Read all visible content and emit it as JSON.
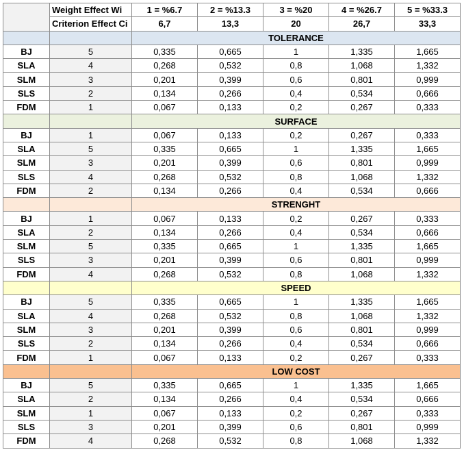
{
  "header": {
    "rows": [
      [
        "Weight Effect Wi",
        "1 = %6.7",
        "2 = %13.3",
        "3 = %20",
        "4 = %26.7",
        "5 = %33.3"
      ],
      [
        "Criterion Effect Ci",
        "6,7",
        "13,3",
        "20",
        "26,7",
        "33,3"
      ]
    ]
  },
  "sections": [
    {
      "title": "TOLERANCE",
      "rows": [
        [
          "BJ",
          "5",
          "0,335",
          "0,665",
          "1",
          "1,335",
          "1,665"
        ],
        [
          "SLA",
          "4",
          "0,268",
          "0,532",
          "0,8",
          "1,068",
          "1,332"
        ],
        [
          "SLM",
          "3",
          "0,201",
          "0,399",
          "0,6",
          "0,801",
          "0,999"
        ],
        [
          "SLS",
          "2",
          "0,134",
          "0,266",
          "0,4",
          "0,534",
          "0,666"
        ],
        [
          "FDM",
          "1",
          "0,067",
          "0,133",
          "0,2",
          "0,267",
          "0,333"
        ]
      ]
    },
    {
      "title": "SURFACE",
      "rows": [
        [
          "BJ",
          "1",
          "0,067",
          "0,133",
          "0,2",
          "0,267",
          "0,333"
        ],
        [
          "SLA",
          "5",
          "0,335",
          "0,665",
          "1",
          "1,335",
          "1,665"
        ],
        [
          "SLM",
          "3",
          "0,201",
          "0,399",
          "0,6",
          "0,801",
          "0,999"
        ],
        [
          "SLS",
          "4",
          "0,268",
          "0,532",
          "0,8",
          "1,068",
          "1,332"
        ],
        [
          "FDM",
          "2",
          "0,134",
          "0,266",
          "0,4",
          "0,534",
          "0,666"
        ]
      ]
    },
    {
      "title": "STRENGHT",
      "rows": [
        [
          "BJ",
          "1",
          "0,067",
          "0,133",
          "0,2",
          "0,267",
          "0,333"
        ],
        [
          "SLA",
          "2",
          "0,134",
          "0,266",
          "0,4",
          "0,534",
          "0,666"
        ],
        [
          "SLM",
          "5",
          "0,335",
          "0,665",
          "1",
          "1,335",
          "1,665"
        ],
        [
          "SLS",
          "3",
          "0,201",
          "0,399",
          "0,6",
          "0,801",
          "0,999"
        ],
        [
          "FDM",
          "4",
          "0,268",
          "0,532",
          "0,8",
          "1,068",
          "1,332"
        ]
      ]
    },
    {
      "title": "SPEED",
      "rows": [
        [
          "BJ",
          "5",
          "0,335",
          "0,665",
          "1",
          "1,335",
          "1,665"
        ],
        [
          "SLA",
          "4",
          "0,268",
          "0,532",
          "0,8",
          "1,068",
          "1,332"
        ],
        [
          "SLM",
          "3",
          "0,201",
          "0,399",
          "0,6",
          "0,801",
          "0,999"
        ],
        [
          "SLS",
          "2",
          "0,134",
          "0,266",
          "0,4",
          "0,534",
          "0,666"
        ],
        [
          "FDM",
          "1",
          "0,067",
          "0,133",
          "0,2",
          "0,267",
          "0,333"
        ]
      ]
    },
    {
      "title": "LOW COST",
      "rows": [
        [
          "BJ",
          "5",
          "0,335",
          "0,665",
          "1",
          "1,335",
          "1,665"
        ],
        [
          "SLA",
          "2",
          "0,134",
          "0,266",
          "0,4",
          "0,534",
          "0,666"
        ],
        [
          "SLM",
          "1",
          "0,067",
          "0,133",
          "0,2",
          "0,267",
          "0,333"
        ],
        [
          "SLS",
          "3",
          "0,201",
          "0,399",
          "0,6",
          "0,801",
          "0,999"
        ],
        [
          "FDM",
          "4",
          "0,268",
          "0,532",
          "0,8",
          "1,068",
          "1,332"
        ]
      ]
    }
  ]
}
